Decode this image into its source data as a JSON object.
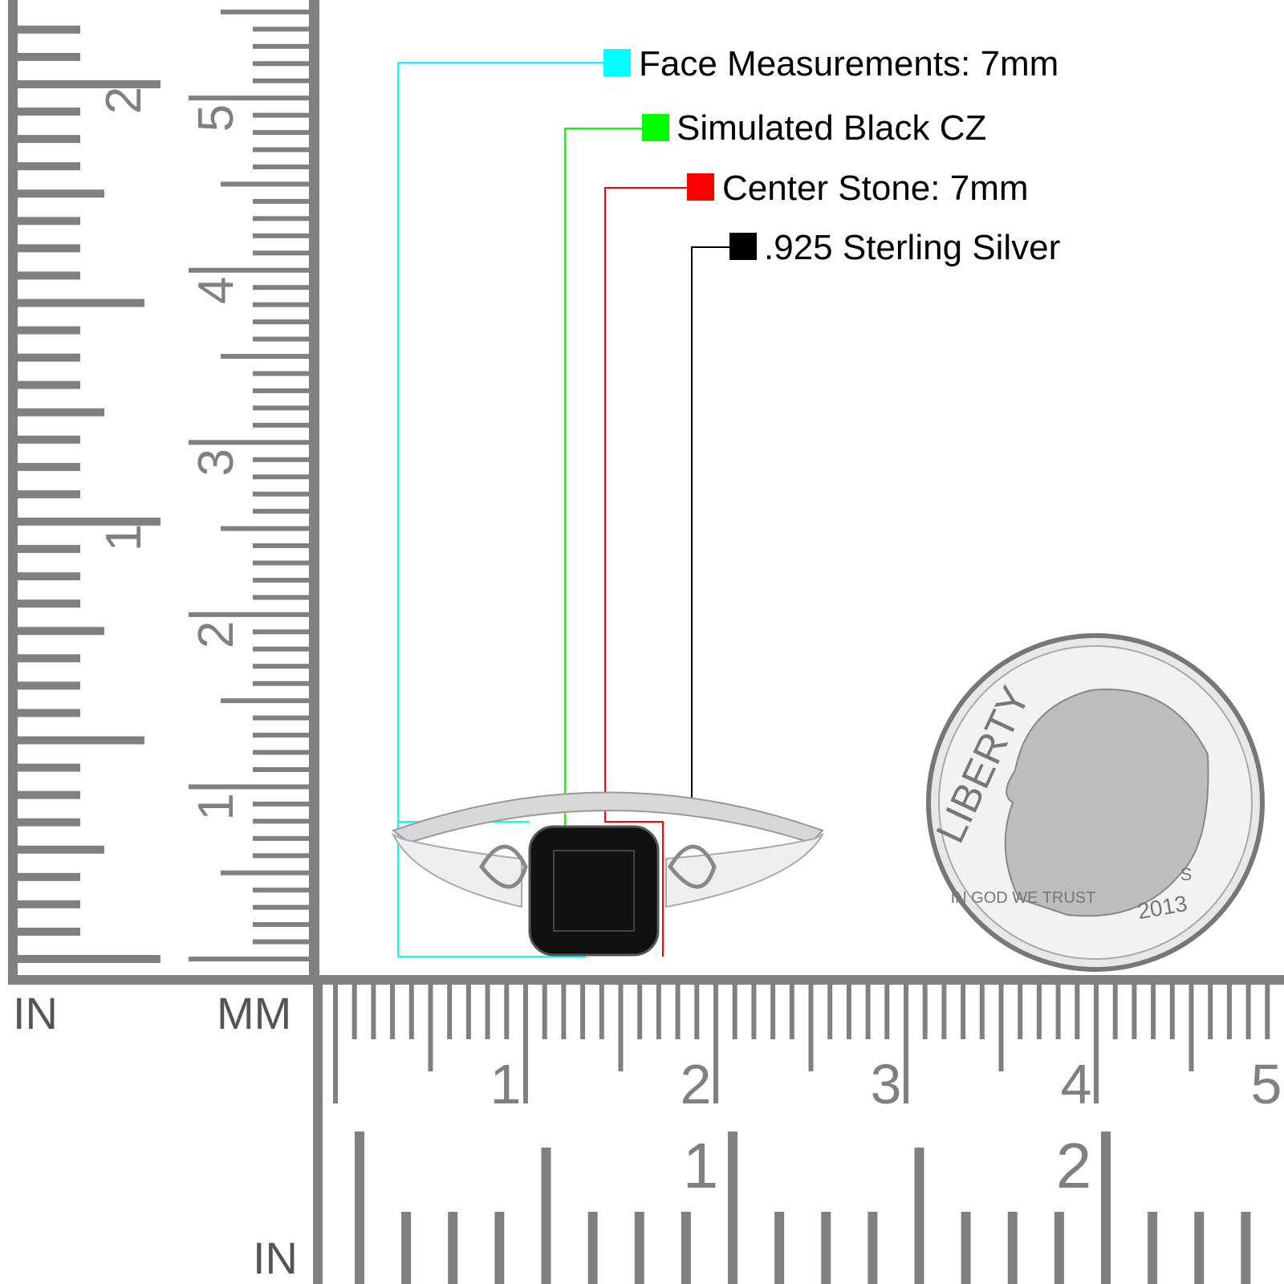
{
  "callouts": [
    {
      "label": "Face Measurements: 7mm",
      "color": "#00ffff"
    },
    {
      "label": "Simulated Black CZ",
      "color": "#00ff00"
    },
    {
      "label": "Center Stone: 7mm",
      "color": "#ff0000"
    },
    {
      "label": ".925 Sterling Silver",
      "color": "#000000"
    }
  ],
  "rulers": {
    "left_in_label": "IN",
    "left_mm_label": "MM",
    "bottom_in_label": "IN",
    "vertical_mm_numbers": [
      "1",
      "2",
      "3",
      "4",
      "5"
    ],
    "vertical_in_numbers": [
      "1",
      "2"
    ],
    "horizontal_mm_numbers": [
      "1",
      "2",
      "3",
      "4",
      "5"
    ],
    "horizontal_in_numbers": [
      "1",
      "2"
    ],
    "color": "#808080"
  },
  "coin": {
    "legend": "LIBERTY",
    "motto": "IN GOD WE TRUST",
    "year": "2013",
    "mint_mark": "S"
  }
}
